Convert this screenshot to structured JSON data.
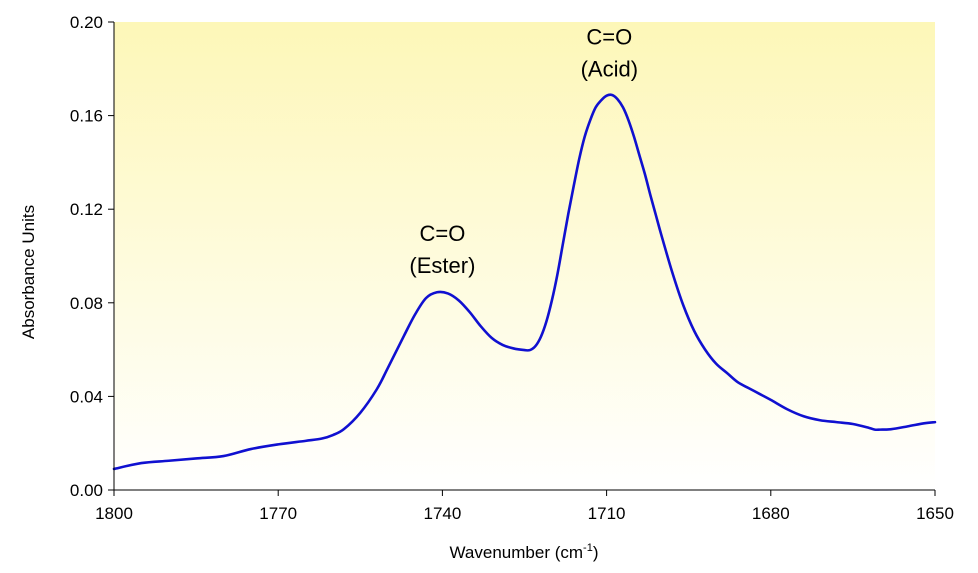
{
  "chart_data": {
    "type": "line",
    "xlabel": "Wavenumber (cm",
    "xlabel_sup": "-1",
    "xlabel_close": ")",
    "ylabel": "Absorbance Units",
    "xlim": [
      1800,
      1650
    ],
    "ylim": [
      0,
      0.2
    ],
    "x_reversed": true,
    "x_ticks": [
      1800,
      1770,
      1740,
      1710,
      1680,
      1650
    ],
    "x_tick_labels": [
      "1800",
      "1770",
      "1740",
      "1710",
      "1680",
      "1650"
    ],
    "y_ticks": [
      0,
      0.04,
      0.08,
      0.12,
      0.16,
      0.2
    ],
    "y_tick_labels": [
      "0.00",
      "0.04",
      "0.08",
      "0.12",
      "0.16",
      "0.20"
    ],
    "grid": false,
    "legend": "none",
    "line_color": "#1010d0",
    "background_gradient": [
      "#fdf7b8",
      "#ffffff"
    ],
    "annotations": [
      {
        "lines": [
          "C=O",
          "(Ester)"
        ],
        "x": 1740,
        "y": 0.085
      },
      {
        "lines": [
          "C=O",
          "(Acid)"
        ],
        "x": 1709.5,
        "y": 0.169
      }
    ],
    "series": [
      {
        "x": [
          1800,
          1795,
          1790,
          1785,
          1780,
          1775,
          1770,
          1765,
          1762,
          1760,
          1758,
          1755,
          1752,
          1750,
          1747,
          1745,
          1743,
          1741,
          1739,
          1737,
          1735,
          1733,
          1731,
          1729,
          1727,
          1725,
          1724,
          1723,
          1722,
          1721,
          1720,
          1719,
          1718,
          1717,
          1716,
          1715,
          1714,
          1713,
          1712,
          1711,
          1710,
          1709,
          1708,
          1707,
          1706,
          1705,
          1704,
          1703,
          1702,
          1701,
          1700,
          1698,
          1696,
          1694,
          1692,
          1690,
          1688,
          1686,
          1684,
          1682,
          1680,
          1677,
          1674,
          1671,
          1668,
          1665,
          1662,
          1661,
          1660,
          1658,
          1655,
          1652,
          1650
        ],
        "y": [
          0.009,
          0.0115,
          0.0125,
          0.0135,
          0.0145,
          0.0175,
          0.0195,
          0.021,
          0.022,
          0.0235,
          0.026,
          0.033,
          0.043,
          0.052,
          0.066,
          0.075,
          0.082,
          0.0845,
          0.084,
          0.081,
          0.076,
          0.07,
          0.065,
          0.062,
          0.0605,
          0.0598,
          0.0598,
          0.0615,
          0.0655,
          0.072,
          0.081,
          0.092,
          0.105,
          0.118,
          0.13,
          0.1415,
          0.151,
          0.158,
          0.1635,
          0.1665,
          0.1685,
          0.1688,
          0.167,
          0.1635,
          0.158,
          0.151,
          0.143,
          0.135,
          0.126,
          0.1175,
          0.109,
          0.093,
          0.079,
          0.068,
          0.06,
          0.054,
          0.05,
          0.046,
          0.0435,
          0.041,
          0.0385,
          0.0345,
          0.0315,
          0.0298,
          0.029,
          0.0282,
          0.0265,
          0.0258,
          0.0258,
          0.026,
          0.0272,
          0.0285,
          0.029
        ]
      }
    ]
  }
}
